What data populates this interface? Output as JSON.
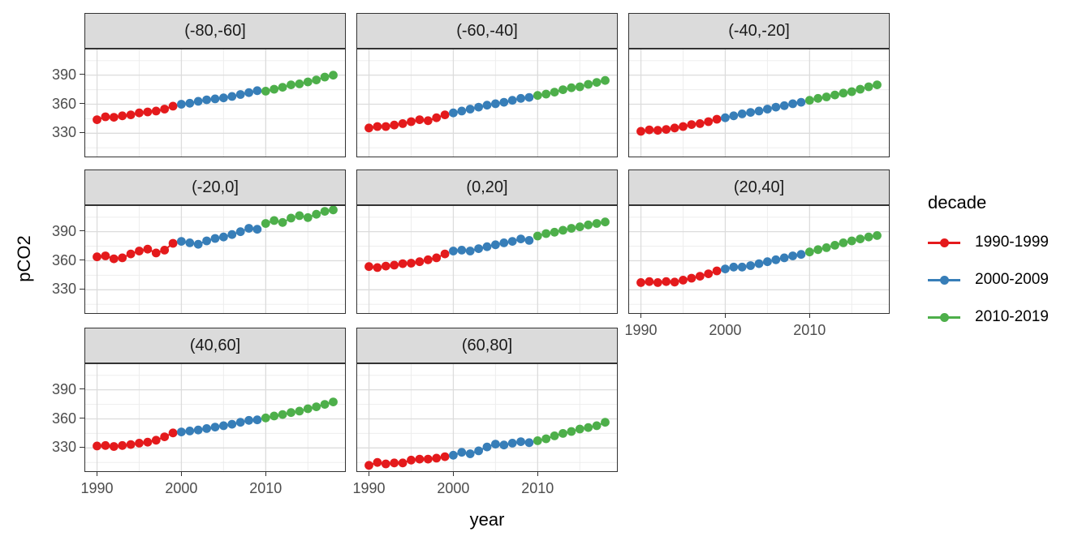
{
  "axes": {
    "y_title": "pCO2",
    "x_title": "year"
  },
  "legend": {
    "title": "decade",
    "entries": [
      {
        "label": "1990-1999",
        "color": "#E41A1C"
      },
      {
        "label": "2000-2009",
        "color": "#377EB8"
      },
      {
        "label": "2010-2019",
        "color": "#4DAF4A"
      }
    ]
  },
  "chart_data": {
    "type": "scatter",
    "description": "Faceted scatter/line plot of pCO2 vs year by latitude band, colored by decade",
    "xlabel": "year",
    "ylabel": "pCO2",
    "x_ticks": [
      1990,
      2000,
      2010
    ],
    "y_ticks": [
      330,
      360,
      390
    ],
    "x_minor": [
      1995,
      2005,
      2015
    ],
    "y_minor": [
      315,
      345,
      375,
      405
    ],
    "xlim": [
      1988.6,
      2019.4
    ],
    "ylim": [
      306,
      416.5
    ],
    "grid": true,
    "legend_position": "right",
    "years": [
      1990,
      1991,
      1992,
      1993,
      1994,
      1995,
      1996,
      1997,
      1998,
      1999,
      2000,
      2001,
      2002,
      2003,
      2004,
      2005,
      2006,
      2007,
      2008,
      2009,
      2010,
      2011,
      2012,
      2013,
      2014,
      2015,
      2016,
      2017,
      2018
    ],
    "decades": [
      {
        "name": "1990-1999",
        "color": "#E41A1C",
        "from": 1990,
        "to": 1999
      },
      {
        "name": "2000-2009",
        "color": "#377EB8",
        "from": 2000,
        "to": 2009
      },
      {
        "name": "2010-2019",
        "color": "#4DAF4A",
        "from": 2010,
        "to": 2019
      }
    ],
    "facets": [
      {
        "label": "(-80,-60]",
        "pco2": [
          344,
          347,
          346.5,
          348,
          349,
          351,
          352,
          353,
          355,
          358,
          360,
          361,
          363,
          364.5,
          365.5,
          366.5,
          368,
          370,
          372,
          374,
          373.5,
          375.5,
          377.5,
          380,
          381,
          383,
          385,
          388,
          390
        ]
      },
      {
        "label": "(-60,-40]",
        "pco2": [
          335.5,
          337,
          337,
          338.5,
          340,
          342,
          344,
          343,
          346,
          349,
          351,
          353,
          355,
          357,
          359,
          360.5,
          362,
          364,
          366,
          367,
          369,
          370.5,
          372.5,
          375,
          377,
          378,
          380.5,
          382.5,
          384.5
        ]
      },
      {
        "label": "(-40,-20]",
        "pco2": [
          332,
          333.5,
          333,
          334,
          335.5,
          337,
          339,
          340,
          342,
          344.5,
          346,
          348,
          350,
          351.5,
          353,
          355,
          357,
          358.5,
          360.5,
          362,
          364,
          366,
          367.5,
          369.5,
          371.5,
          373,
          375.5,
          378,
          380
        ]
      },
      {
        "label": "(-20,0]",
        "pco2": [
          364,
          365,
          362,
          363,
          367,
          370,
          372,
          368,
          371,
          378,
          380,
          378.5,
          377,
          380.5,
          383,
          384.5,
          387,
          390,
          393.5,
          392.5,
          398.5,
          401.5,
          399.5,
          404,
          406.5,
          404.5,
          408,
          411,
          412.5
        ]
      },
      {
        "label": "(0,20]",
        "pco2": [
          354,
          353,
          354.5,
          355.5,
          357,
          357.5,
          359,
          361,
          363,
          367,
          370,
          371,
          370,
          372.5,
          374.5,
          376.5,
          378.5,
          380,
          382.5,
          381,
          385.5,
          388,
          389.5,
          391.5,
          393.5,
          395,
          397,
          398.5,
          400
        ]
      },
      {
        "label": "(20,40]",
        "pco2": [
          337.5,
          338.5,
          337.5,
          338.5,
          338,
          340,
          342,
          344,
          346.5,
          349.5,
          351.5,
          353.5,
          353.5,
          355,
          357,
          359,
          361,
          363,
          365,
          366.5,
          369,
          371.5,
          373.5,
          376,
          378.5,
          380.5,
          382.5,
          384.5,
          386
        ]
      },
      {
        "label": "(40,60]",
        "pco2": [
          332,
          332.5,
          331.5,
          332.5,
          333.5,
          335,
          336,
          338,
          341.5,
          345.5,
          346.5,
          347.5,
          348.5,
          350,
          351.5,
          353,
          354.5,
          356.5,
          358.5,
          359,
          361,
          363,
          364.5,
          366.5,
          368,
          370.5,
          372.5,
          375,
          377.5
        ]
      },
      {
        "label": "(60,80]",
        "pco2": [
          312,
          315,
          313.5,
          314.5,
          314.5,
          317.5,
          318.5,
          318.5,
          319.5,
          321,
          322.5,
          325.5,
          324,
          327,
          331,
          334,
          333,
          335,
          336.5,
          335.5,
          337.5,
          339.5,
          342.5,
          345,
          347,
          349.5,
          351,
          353,
          356.5
        ]
      }
    ]
  }
}
